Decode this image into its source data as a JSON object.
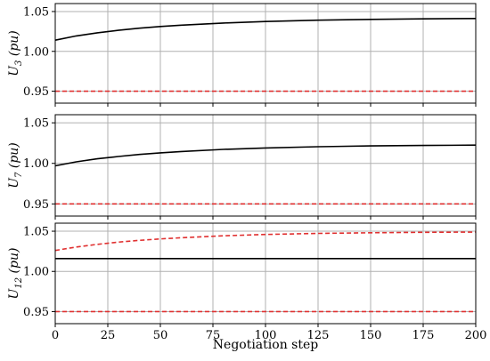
{
  "chart_data": {
    "type": "line",
    "x": [
      0,
      10,
      20,
      30,
      40,
      50,
      60,
      80,
      100,
      125,
      150,
      175,
      200
    ],
    "xlim": [
      0,
      200
    ],
    "xticks": [
      0,
      25,
      50,
      75,
      100,
      125,
      150,
      175,
      200
    ],
    "xticklabels": [
      "0",
      "25",
      "50",
      "75",
      "100",
      "125",
      "150",
      "175",
      "200"
    ],
    "xlabel": "Negotiation step",
    "grid": true,
    "panels": [
      {
        "ylabel": {
          "base": "U",
          "sub": "3",
          "unit": " (pu)"
        },
        "ylim": [
          0.935,
          1.06
        ],
        "yticks": [
          0.95,
          1.0,
          1.05
        ],
        "yticklabels": [
          "0.95",
          "1.00",
          "1.05"
        ],
        "series": [
          {
            "style": "solid",
            "color": "#000000",
            "values": [
              1.014,
              1.0194,
              1.0233,
              1.0264,
              1.0291,
              1.0312,
              1.0329,
              1.0356,
              1.0375,
              1.0391,
              1.0401,
              1.0408,
              1.0412
            ]
          },
          {
            "style": "dashed",
            "color": "#e03030",
            "values": [
              0.95,
              0.95,
              0.95,
              0.95,
              0.95,
              0.95,
              0.95,
              0.95,
              0.95,
              0.95,
              0.95,
              0.95,
              0.95
            ]
          }
        ]
      },
      {
        "ylabel": {
          "base": "U",
          "sub": "7",
          "unit": " (pu)"
        },
        "ylim": [
          0.935,
          1.06
        ],
        "yticks": [
          0.95,
          1.0,
          1.05
        ],
        "yticklabels": [
          "0.95",
          "1.00",
          "1.05"
        ],
        "series": [
          {
            "style": "solid",
            "color": "#000000",
            "values": [
              0.997,
              1.0019,
              1.0056,
              1.0085,
              1.011,
              1.013,
              1.0146,
              1.0172,
              1.019,
              1.0205,
              1.0215,
              1.0221,
              1.0225
            ]
          },
          {
            "style": "dashed",
            "color": "#e03030",
            "values": [
              0.95,
              0.95,
              0.95,
              0.95,
              0.95,
              0.95,
              0.95,
              0.95,
              0.95,
              0.95,
              0.95,
              0.95,
              0.95
            ]
          }
        ]
      },
      {
        "ylabel": {
          "base": "U",
          "sub": "12",
          "unit": " (pu)"
        },
        "ylim": [
          0.935,
          1.06
        ],
        "yticks": [
          0.95,
          1.0,
          1.05
        ],
        "yticklabels": [
          "0.95",
          "1.00",
          "1.05"
        ],
        "series": [
          {
            "style": "solid",
            "color": "#000000",
            "values": [
              1.016,
              1.016,
              1.016,
              1.016,
              1.016,
              1.016,
              1.016,
              1.016,
              1.016,
              1.016,
              1.016,
              1.016,
              1.016
            ]
          },
          {
            "style": "dashed",
            "color": "#e03030",
            "values": [
              1.026,
              1.0304,
              1.0337,
              1.0364,
              1.0386,
              1.0404,
              1.0419,
              1.0443,
              1.046,
              1.0473,
              1.0481,
              1.0486,
              1.0489
            ]
          },
          {
            "style": "dashed",
            "color": "#e03030",
            "values": [
              0.95,
              0.95,
              0.95,
              0.95,
              0.95,
              0.95,
              0.95,
              0.95,
              0.95,
              0.95,
              0.95,
              0.95,
              0.95
            ]
          }
        ]
      }
    ]
  }
}
